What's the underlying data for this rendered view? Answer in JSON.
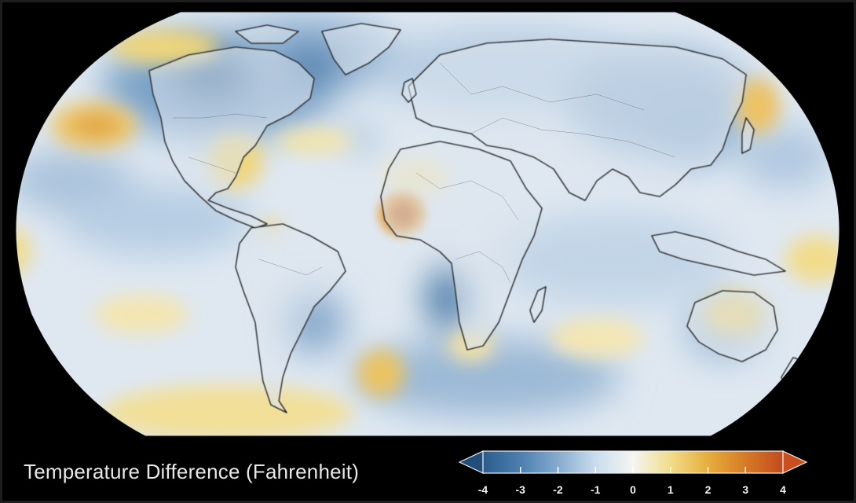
{
  "legend": {
    "title": "Temperature Difference (Fahrenheit)",
    "colorbar": {
      "min": -4,
      "max": 4,
      "tick_labels": [
        "-4",
        "-3",
        "-2",
        "-1",
        "0",
        "1",
        "2",
        "3",
        "4"
      ],
      "extend": "both",
      "stops": [
        {
          "value": -4,
          "color": "#2b5c8c"
        },
        {
          "value": -3,
          "color": "#4c7fb0"
        },
        {
          "value": -2,
          "color": "#87abcf"
        },
        {
          "value": -1,
          "color": "#c9dced"
        },
        {
          "value": 0,
          "color": "#f5f5f2"
        },
        {
          "value": 1,
          "color": "#f1dd8a"
        },
        {
          "value": 2,
          "color": "#e6ae3c"
        },
        {
          "value": 3,
          "color": "#d77a26"
        },
        {
          "value": 4,
          "color": "#c24a1c"
        }
      ],
      "under_color": "#1f4e7a",
      "over_color": "#c9501e"
    }
  },
  "map": {
    "projection": "Robinson",
    "ocean_base_color": "#dbe6f0",
    "land_color": "#d4dce6",
    "outline_color": "#333333"
  }
}
